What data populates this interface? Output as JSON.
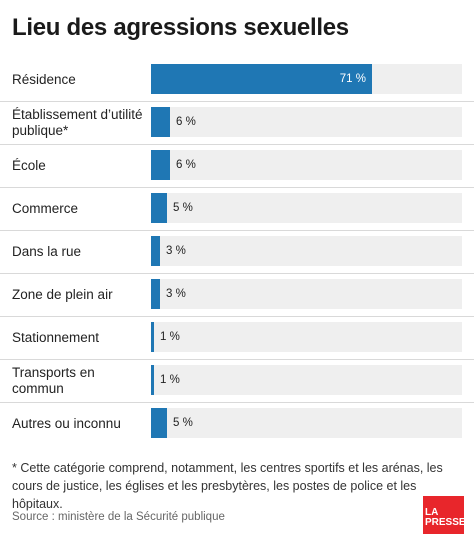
{
  "title": "Lieu des agressions sexuelles",
  "chart_data": {
    "type": "bar",
    "orientation": "horizontal",
    "categories": [
      "Résidence",
      "Établissement d’utilité publique*",
      "École",
      "Commerce",
      "Dans la rue",
      "Zone de plein air",
      "Stationnement",
      "Transports en commun",
      "Autres ou inconnu"
    ],
    "values": [
      71,
      6,
      6,
      5,
      3,
      3,
      1,
      1,
      5
    ],
    "value_labels": [
      "71 %",
      "6 %",
      "6 %",
      "5 %",
      "3 %",
      "3 %",
      "1 %",
      "1 %",
      "5 %"
    ],
    "xlim": [
      0,
      100
    ],
    "bar_color": "#1f77b4",
    "track_color": "#efefef"
  },
  "footnote": "* Cette catégorie comprend, notamment, les centres sportifs et les arénas, les cours de justice, les églises et les presbytères, les postes de police et les hôpitaux.",
  "source": "Source : ministère de la Sécurité publique",
  "logo": {
    "line1": "LA",
    "line2": "PRESSE",
    "color": "#e8262b"
  }
}
